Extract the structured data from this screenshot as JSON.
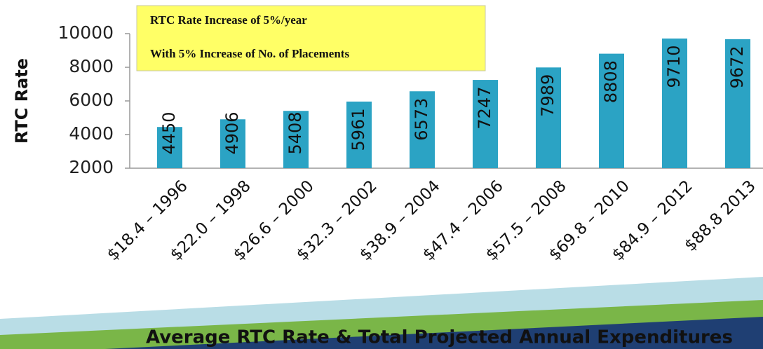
{
  "chart_data": {
    "type": "bar",
    "title": "Average RTC Rate & Total Projected Annual Expenditures",
    "ylabel": "RTC Rate",
    "annotations": [
      "RTC Rate Increase of 5%/year",
      "With 5% Increase of No. of Placements"
    ],
    "categories": [
      "$18.4 – 1996",
      "$22.0 – 1998",
      "$26.6 – 2000",
      "$32.3 – 2002",
      "$38.9 – 2004",
      "$47.4 – 2006",
      "$57.5 – 2008",
      "$69.8 – 2010",
      "$84.9 – 2012",
      "$88.8 2013"
    ],
    "values": [
      4450,
      4906,
      5408,
      5961,
      6573,
      7247,
      7989,
      8808,
      9710,
      9672
    ],
    "color": "#2ba3c4",
    "ylim": [
      2000,
      10000
    ],
    "yticks": [
      2000,
      4000,
      6000,
      8000,
      10000
    ],
    "grid": false
  }
}
